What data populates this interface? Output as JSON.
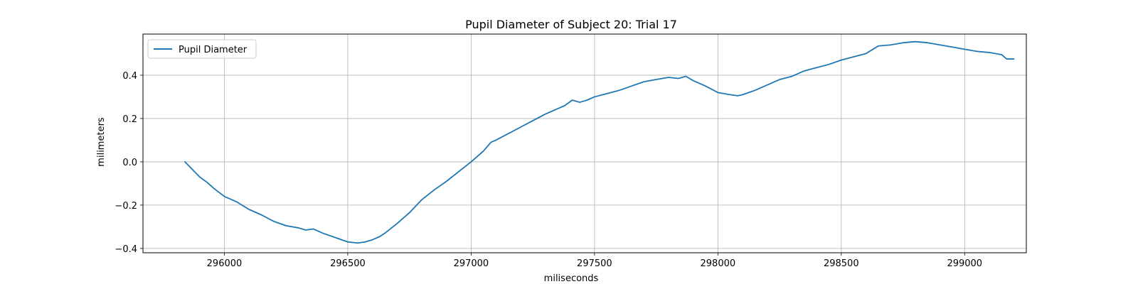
{
  "chart_data": {
    "type": "line",
    "title": "Pupil Diameter of Subject 20: Trial 17",
    "xlabel": "miliseconds",
    "ylabel": "milimeters",
    "xlim": [
      295670,
      299250
    ],
    "ylim": [
      -0.42,
      0.59
    ],
    "xticks": [
      296000,
      296500,
      297000,
      297500,
      298000,
      298500,
      299000
    ],
    "yticks": [
      -0.4,
      -0.2,
      0.0,
      0.2,
      0.4
    ],
    "ytick_labels": [
      "−0.4",
      "−0.2",
      "0.0",
      "0.2",
      "0.4"
    ],
    "grid": true,
    "legend_position": "top-left",
    "series": [
      {
        "name": "Pupil Diameter",
        "color": "#1f77b4",
        "x": [
          295840,
          295870,
          295900,
          295930,
          295960,
          296000,
          296050,
          296100,
          296150,
          296200,
          296250,
          296300,
          296330,
          296360,
          296400,
          296450,
          296500,
          296540,
          296570,
          296600,
          296630,
          296650,
          296700,
          296750,
          296800,
          296850,
          296900,
          296950,
          297000,
          297050,
          297080,
          297100,
          297150,
          297200,
          297250,
          297300,
          297350,
          297380,
          297410,
          297440,
          297470,
          297500,
          297550,
          297600,
          297650,
          297700,
          297750,
          297800,
          297840,
          297870,
          297900,
          297950,
          298000,
          298050,
          298080,
          298100,
          298150,
          298200,
          298250,
          298300,
          298350,
          298400,
          298450,
          298500,
          298550,
          298600,
          298650,
          298700,
          298750,
          298800,
          298850,
          298900,
          298950,
          299000,
          299050,
          299100,
          299150,
          299170,
          299200
        ],
        "y": [
          0.0,
          -0.035,
          -0.07,
          -0.095,
          -0.125,
          -0.16,
          -0.185,
          -0.22,
          -0.245,
          -0.275,
          -0.295,
          -0.305,
          -0.315,
          -0.31,
          -0.33,
          -0.35,
          -0.37,
          -0.375,
          -0.37,
          -0.36,
          -0.345,
          -0.33,
          -0.285,
          -0.235,
          -0.175,
          -0.13,
          -0.09,
          -0.045,
          0.0,
          0.05,
          0.09,
          0.1,
          0.13,
          0.16,
          0.19,
          0.22,
          0.245,
          0.26,
          0.285,
          0.275,
          0.285,
          0.3,
          0.315,
          0.33,
          0.35,
          0.37,
          0.38,
          0.39,
          0.385,
          0.395,
          0.375,
          0.35,
          0.32,
          0.31,
          0.305,
          0.31,
          0.33,
          0.355,
          0.38,
          0.395,
          0.42,
          0.435,
          0.45,
          0.47,
          0.485,
          0.5,
          0.535,
          0.54,
          0.55,
          0.555,
          0.55,
          0.54,
          0.53,
          0.52,
          0.51,
          0.505,
          0.495,
          0.475,
          0.475
        ]
      }
    ]
  }
}
